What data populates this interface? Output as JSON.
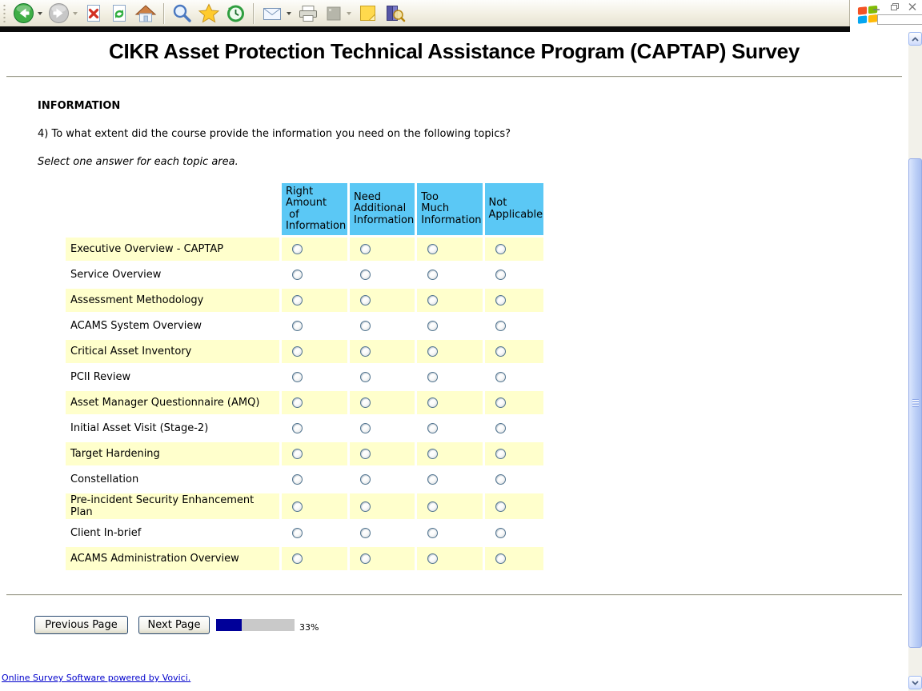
{
  "browser": {
    "toolbar_icons": {
      "back-icon": "green-circle-left-arrow",
      "forward-icon": "gray-circle-right-arrow-disabled",
      "stop-icon": "page-with-red-x",
      "refresh-icon": "page-with-green-arrows",
      "home-icon": "house",
      "search-icon": "magnifying-glass",
      "favorites-icon": "gold-star",
      "history-icon": "green-clock-arrow",
      "mail-icon": "envelope",
      "print-icon": "printer",
      "edit-icon": "gray-square-disabled",
      "notes-icon": "yellow-sticky-note",
      "research-icon": "books-with-magnifier"
    },
    "throbber": "windows-flag-logo",
    "window_controls": [
      "minimize",
      "restore",
      "close"
    ]
  },
  "page": {
    "title": "CIKR Asset Protection Technical Assistance Program (CAPTAP) Survey",
    "section_heading": "INFORMATION",
    "question": "4) To what extent did the course provide the information you need on the following topics?",
    "instruction": "Select one answer for each topic area.",
    "table": {
      "columns": [
        "Right\nAmount\n of\nInformation",
        "Need\nAdditional\nInformation",
        "Too\nMuch\nInformation",
        "Not\nApplicable"
      ],
      "rows": [
        "Executive Overview - CAPTAP",
        "Service Overview",
        "Assessment Methodology",
        "ACAMS System Overview",
        "Critical Asset Inventory",
        "PCII Review",
        "Asset Manager Questionnaire (AMQ)",
        "Initial Asset Visit (Stage-2)",
        "Target Hardening",
        "Constellation",
        "Pre-incident Security Enhancement Plan",
        "Client In-brief",
        "ACAMS Administration Overview"
      ]
    },
    "buttons": {
      "previous": "Previous Page",
      "next": "Next Page"
    },
    "progress": {
      "percent": 33,
      "label": "33%"
    },
    "footer_link": "Online Survey Software powered by Vovici.",
    "colors": {
      "header_blue": "#5BC8F5",
      "row_yellow": "#FFFFCC",
      "progress_navy": "#000099",
      "progress_track": "#C9C9C9",
      "link_blue": "#0000CC"
    }
  }
}
